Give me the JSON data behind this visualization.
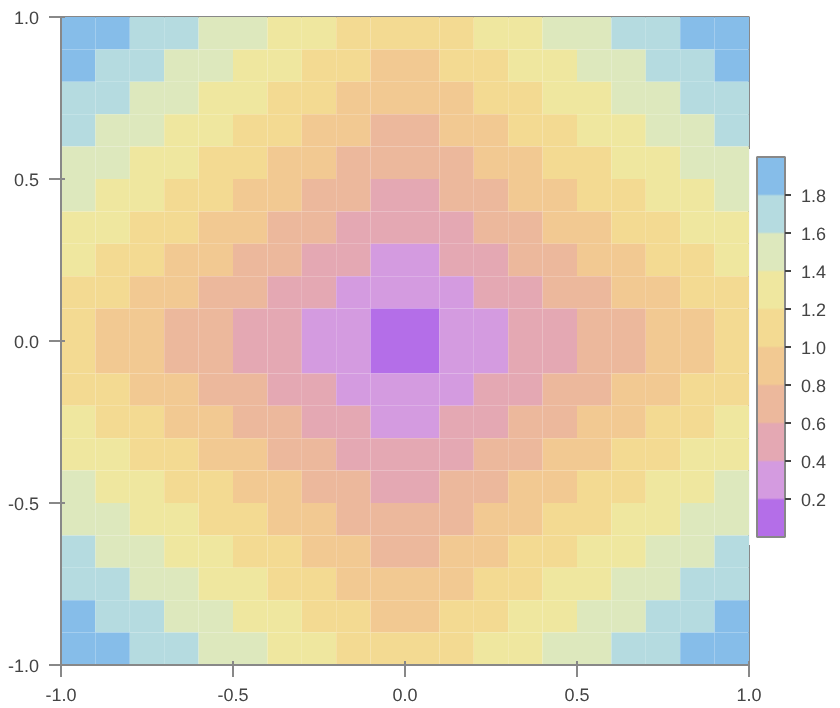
{
  "chart_data": {
    "type": "heatmap",
    "x": [
      -0.95,
      -0.85,
      -0.75,
      -0.65,
      -0.55,
      -0.45,
      -0.35,
      -0.25,
      -0.15,
      -0.05,
      0.05,
      0.15,
      0.25,
      0.35,
      0.45,
      0.55,
      0.65,
      0.75,
      0.85,
      0.95
    ],
    "y": [
      0.95,
      0.85,
      0.75,
      0.65,
      0.55,
      0.45,
      0.35,
      0.25,
      0.15,
      0.05,
      -0.05,
      -0.15,
      -0.25,
      -0.35,
      -0.45,
      -0.55,
      -0.65,
      -0.75,
      -0.85,
      -0.95
    ],
    "cells": [
      [
        1.9,
        1.9,
        1.7,
        1.7,
        1.5,
        1.5,
        1.3,
        1.3,
        1.1,
        1.1,
        1.1,
        1.1,
        1.3,
        1.3,
        1.5,
        1.5,
        1.7,
        1.7,
        1.9,
        1.9
      ],
      [
        1.9,
        1.7,
        1.7,
        1.5,
        1.5,
        1.3,
        1.3,
        1.1,
        1.1,
        0.9,
        0.9,
        1.1,
        1.1,
        1.3,
        1.3,
        1.5,
        1.5,
        1.7,
        1.7,
        1.9
      ],
      [
        1.7,
        1.7,
        1.5,
        1.5,
        1.3,
        1.3,
        1.1,
        1.1,
        0.9,
        0.9,
        0.9,
        0.9,
        1.1,
        1.1,
        1.3,
        1.3,
        1.5,
        1.5,
        1.7,
        1.7
      ],
      [
        1.7,
        1.5,
        1.5,
        1.3,
        1.3,
        1.1,
        1.1,
        0.9,
        0.9,
        0.7,
        0.7,
        0.9,
        0.9,
        1.1,
        1.1,
        1.3,
        1.3,
        1.5,
        1.5,
        1.7
      ],
      [
        1.5,
        1.5,
        1.3,
        1.3,
        1.1,
        1.1,
        0.9,
        0.9,
        0.7,
        0.7,
        0.7,
        0.7,
        0.9,
        0.9,
        1.1,
        1.1,
        1.3,
        1.3,
        1.5,
        1.5
      ],
      [
        1.5,
        1.3,
        1.3,
        1.1,
        1.1,
        0.9,
        0.9,
        0.7,
        0.7,
        0.5,
        0.5,
        0.7,
        0.7,
        0.9,
        0.9,
        1.1,
        1.1,
        1.3,
        1.3,
        1.5
      ],
      [
        1.3,
        1.3,
        1.1,
        1.1,
        0.9,
        0.9,
        0.7,
        0.7,
        0.5,
        0.5,
        0.5,
        0.5,
        0.7,
        0.7,
        0.9,
        0.9,
        1.1,
        1.1,
        1.3,
        1.3
      ],
      [
        1.3,
        1.1,
        1.1,
        0.9,
        0.9,
        0.7,
        0.7,
        0.5,
        0.5,
        0.3,
        0.3,
        0.5,
        0.5,
        0.7,
        0.7,
        0.9,
        0.9,
        1.1,
        1.1,
        1.3
      ],
      [
        1.1,
        1.1,
        0.9,
        0.9,
        0.7,
        0.7,
        0.5,
        0.5,
        0.3,
        0.3,
        0.3,
        0.3,
        0.5,
        0.5,
        0.7,
        0.7,
        0.9,
        0.9,
        1.1,
        1.1
      ],
      [
        1.1,
        0.9,
        0.9,
        0.7,
        0.7,
        0.5,
        0.5,
        0.3,
        0.3,
        0.1,
        0.1,
        0.3,
        0.3,
        0.5,
        0.5,
        0.7,
        0.7,
        0.9,
        0.9,
        1.1
      ],
      [
        1.1,
        0.9,
        0.9,
        0.7,
        0.7,
        0.5,
        0.5,
        0.3,
        0.3,
        0.1,
        0.1,
        0.3,
        0.3,
        0.5,
        0.5,
        0.7,
        0.7,
        0.9,
        0.9,
        1.1
      ],
      [
        1.1,
        1.1,
        0.9,
        0.9,
        0.7,
        0.7,
        0.5,
        0.5,
        0.3,
        0.3,
        0.3,
        0.3,
        0.5,
        0.5,
        0.7,
        0.7,
        0.9,
        0.9,
        1.1,
        1.1
      ],
      [
        1.3,
        1.1,
        1.1,
        0.9,
        0.9,
        0.7,
        0.7,
        0.5,
        0.5,
        0.3,
        0.3,
        0.5,
        0.5,
        0.7,
        0.7,
        0.9,
        0.9,
        1.1,
        1.1,
        1.3
      ],
      [
        1.3,
        1.3,
        1.1,
        1.1,
        0.9,
        0.9,
        0.7,
        0.7,
        0.5,
        0.5,
        0.5,
        0.5,
        0.7,
        0.7,
        0.9,
        0.9,
        1.1,
        1.1,
        1.3,
        1.3
      ],
      [
        1.5,
        1.3,
        1.3,
        1.1,
        1.1,
        0.9,
        0.9,
        0.7,
        0.7,
        0.5,
        0.5,
        0.7,
        0.7,
        0.9,
        0.9,
        1.1,
        1.1,
        1.3,
        1.3,
        1.5
      ],
      [
        1.5,
        1.5,
        1.3,
        1.3,
        1.1,
        1.1,
        0.9,
        0.9,
        0.7,
        0.7,
        0.7,
        0.7,
        0.9,
        0.9,
        1.1,
        1.1,
        1.3,
        1.3,
        1.5,
        1.5
      ],
      [
        1.7,
        1.5,
        1.5,
        1.3,
        1.3,
        1.1,
        1.1,
        0.9,
        0.9,
        0.7,
        0.7,
        0.9,
        0.9,
        1.1,
        1.1,
        1.3,
        1.3,
        1.5,
        1.5,
        1.7
      ],
      [
        1.7,
        1.7,
        1.5,
        1.5,
        1.3,
        1.3,
        1.1,
        1.1,
        0.9,
        0.9,
        0.9,
        0.9,
        1.1,
        1.1,
        1.3,
        1.3,
        1.5,
        1.5,
        1.7,
        1.7
      ],
      [
        1.9,
        1.7,
        1.7,
        1.5,
        1.5,
        1.3,
        1.3,
        1.1,
        1.1,
        0.9,
        0.9,
        1.1,
        1.1,
        1.3,
        1.3,
        1.5,
        1.5,
        1.7,
        1.7,
        1.9
      ],
      [
        1.9,
        1.9,
        1.7,
        1.7,
        1.5,
        1.5,
        1.3,
        1.3,
        1.1,
        1.1,
        1.1,
        1.1,
        1.3,
        1.3,
        1.5,
        1.5,
        1.7,
        1.7,
        1.9,
        1.9
      ]
    ],
    "colors": [
      "#b46ee8",
      "#d49be0",
      "#e4a8b3",
      "#ecb89c",
      "#f2c992",
      "#f3da92",
      "#efe79f",
      "#dde8bd",
      "#b5dbe0",
      "#86bde9"
    ],
    "clim": [
      0,
      2
    ],
    "cticks": [
      0.2,
      0.4,
      0.6,
      0.8,
      {
        "value": 1,
        "label": "1.0"
      },
      1.2,
      1.4,
      1.6,
      1.8
    ],
    "xlim": [
      -1,
      1
    ],
    "ylim": [
      -1,
      1
    ],
    "xticks": [
      {
        "value": -1,
        "label": "-1.0"
      },
      {
        "value": -0.5,
        "label": "-0.5"
      },
      {
        "value": 0,
        "label": "0.0"
      },
      0.5,
      {
        "value": 1,
        "label": "1.0"
      }
    ],
    "yticks": [
      {
        "value": -1,
        "label": "-1.0"
      },
      {
        "value": -0.5,
        "label": "-0.5"
      },
      {
        "value": 0,
        "label": "0.0"
      },
      0.5,
      {
        "value": 1,
        "label": "1.0"
      }
    ]
  }
}
